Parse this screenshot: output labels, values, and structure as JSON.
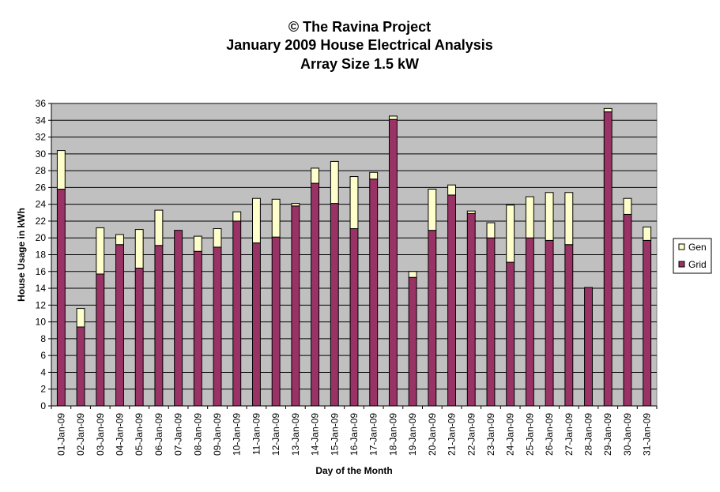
{
  "chart_data": {
    "type": "bar",
    "stacked": true,
    "title": [
      "© The Ravina Project",
      "January 2009 House Electrical Analysis",
      "Array Size 1.5 kW"
    ],
    "xlabel": "Day of the Month",
    "ylabel": "House Usage in kWh",
    "ylim": [
      0,
      36
    ],
    "ytick_step": 2,
    "grid": true,
    "legend_position": "right",
    "categories": [
      "01-Jan-09",
      "02-Jan-09",
      "03-Jan-09",
      "04-Jan-09",
      "05-Jan-09",
      "06-Jan-09",
      "07-Jan-09",
      "08-Jan-09",
      "09-Jan-09",
      "10-Jan-09",
      "11-Jan-09",
      "12-Jan-09",
      "13-Jan-09",
      "14-Jan-09",
      "15-Jan-09",
      "16-Jan-09",
      "17-Jan-09",
      "18-Jan-09",
      "19-Jan-09",
      "20-Jan-09",
      "21-Jan-09",
      "22-Jan-09",
      "23-Jan-09",
      "24-Jan-09",
      "25-Jan-09",
      "26-Jan-09",
      "27-Jan-09",
      "28-Jan-09",
      "29-Jan-09",
      "30-Jan-09",
      "31-Jan-09"
    ],
    "series": [
      {
        "name": "Grid",
        "color": "#993366",
        "values": [
          25.8,
          9.4,
          15.7,
          19.2,
          16.4,
          19.1,
          20.9,
          18.4,
          18.9,
          22.0,
          19.4,
          20.1,
          23.8,
          26.5,
          24.1,
          21.1,
          27.0,
          34.1,
          15.3,
          20.9,
          25.1,
          22.9,
          20.0,
          17.1,
          20.0,
          19.7,
          19.2,
          14.1,
          35.0,
          22.8,
          19.7
        ]
      },
      {
        "name": "Gen",
        "color": "#FFFFCC",
        "values": [
          4.6,
          2.2,
          5.5,
          1.2,
          4.6,
          4.2,
          0.0,
          1.8,
          2.2,
          1.1,
          5.3,
          4.5,
          0.3,
          1.8,
          5.0,
          6.2,
          0.8,
          0.4,
          0.7,
          4.9,
          1.2,
          0.3,
          1.8,
          6.8,
          4.9,
          5.7,
          6.2,
          0.0,
          0.4,
          1.9,
          1.6
        ]
      }
    ],
    "colors": {
      "plot_bg": "#C0C0C0",
      "grid": "#000000",
      "bar_outline": "#000000"
    }
  }
}
